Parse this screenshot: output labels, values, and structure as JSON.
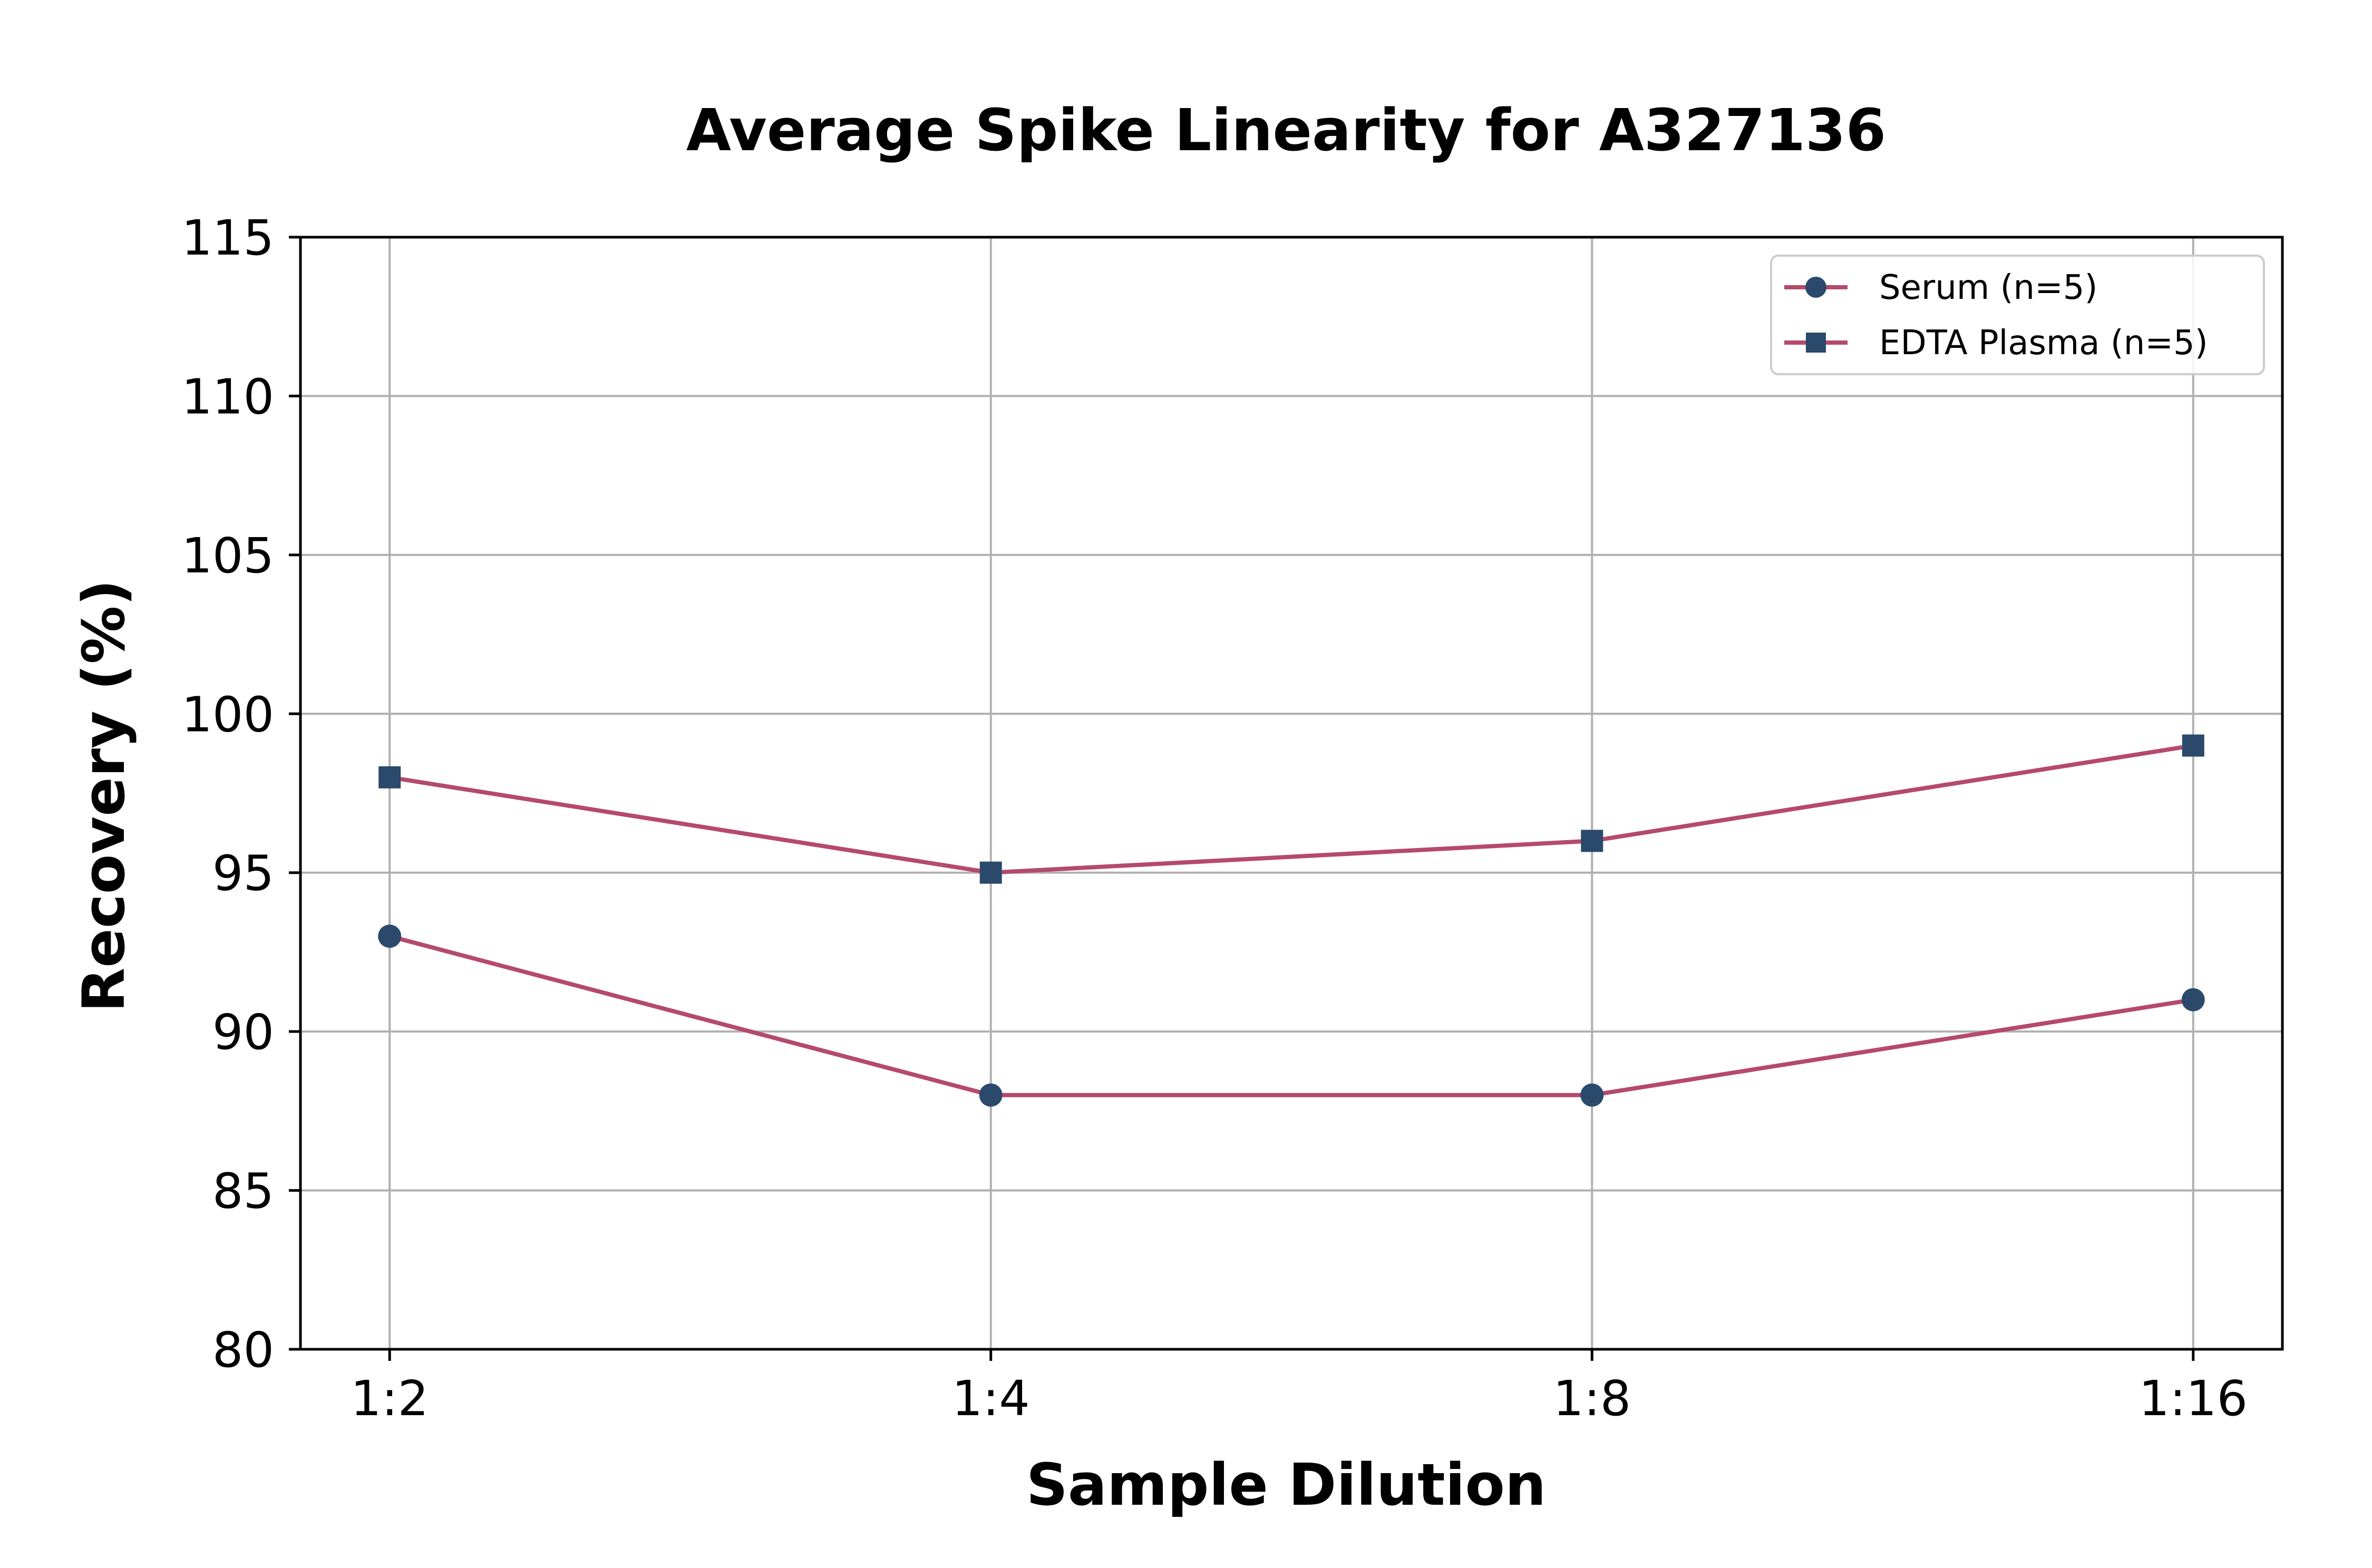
{
  "chart_data": {
    "type": "line",
    "title": "Average Spike Linearity for A327136",
    "xlabel": "Sample Dilution",
    "ylabel": "Recovery (%)",
    "categories": [
      "1:2",
      "1:4",
      "1:8",
      "1:16"
    ],
    "ylim": [
      80,
      115
    ],
    "yticks": [
      "80",
      "85",
      "90",
      "95",
      "100",
      "105",
      "110",
      "115"
    ],
    "grid": true,
    "legend_position": "top-right",
    "line_color": "#b5496e",
    "marker_color": "#2b4a6b",
    "series": [
      {
        "name": "Serum (n=5)",
        "marker": "circle",
        "values": [
          93,
          88,
          88,
          91
        ]
      },
      {
        "name": "EDTA Plasma (n=5)",
        "marker": "square",
        "values": [
          98,
          95,
          96,
          99
        ]
      }
    ]
  }
}
